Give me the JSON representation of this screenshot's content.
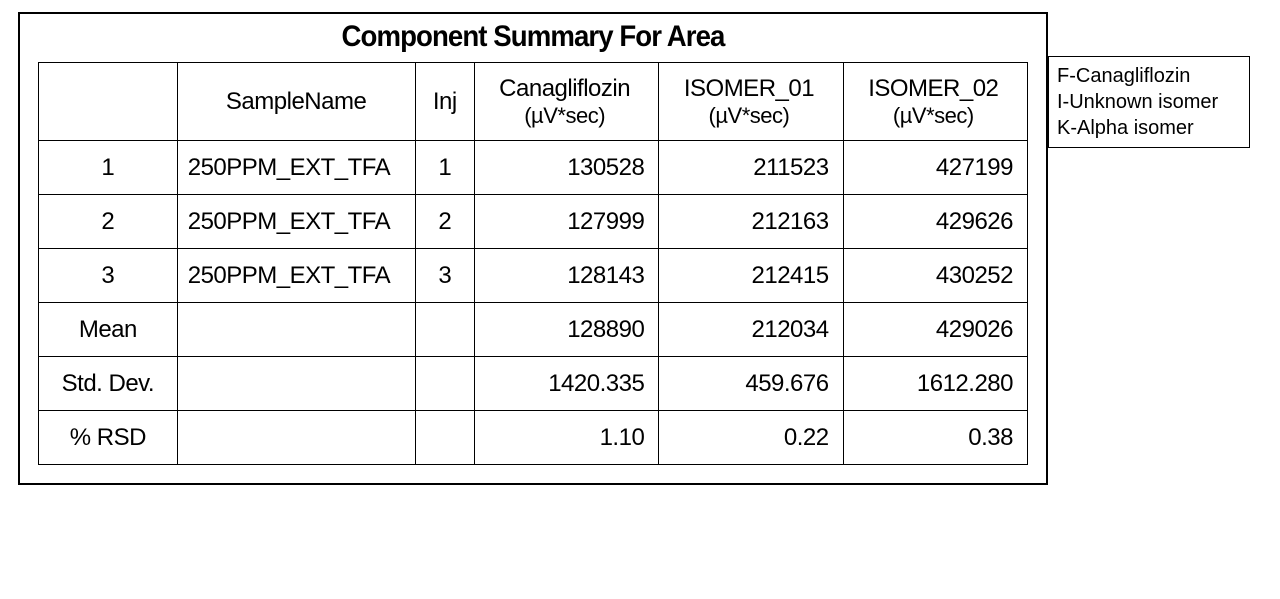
{
  "title": "Component Summary For Area",
  "columns": {
    "idx": "",
    "sampleName": "SampleName",
    "inj": "Inj",
    "c1_top": "Canagliflozin",
    "c1_sub": "(µV*sec)",
    "c2_top": "ISOMER_01",
    "c2_sub": "(µV*sec)",
    "c3_top": "ISOMER_02",
    "c3_sub": "(µV*sec)"
  },
  "rows": [
    {
      "idx": "1",
      "sampleName": "250PPM_EXT_TFA",
      "inj": "1",
      "c1": "130528",
      "c2": "211523",
      "c3": "427199"
    },
    {
      "idx": "2",
      "sampleName": "250PPM_EXT_TFA",
      "inj": "2",
      "c1": "127999",
      "c2": "212163",
      "c3": "429626"
    },
    {
      "idx": "3",
      "sampleName": "250PPM_EXT_TFA",
      "inj": "3",
      "c1": "128143",
      "c2": "212415",
      "c3": "430252"
    }
  ],
  "summary": [
    {
      "label": "Mean",
      "c1": "128890",
      "c2": "212034",
      "c3": "429026"
    },
    {
      "label": "Std. Dev.",
      "c1": "1420.335",
      "c2": "459.676",
      "c3": "1612.280"
    },
    {
      "label": "% RSD",
      "c1": "1.10",
      "c2": "0.22",
      "c3": "0.38"
    }
  ],
  "legend": {
    "line1": "F-Canagliflozin",
    "line2": "I-Unknown isomer",
    "line3": "K-Alpha isomer"
  }
}
